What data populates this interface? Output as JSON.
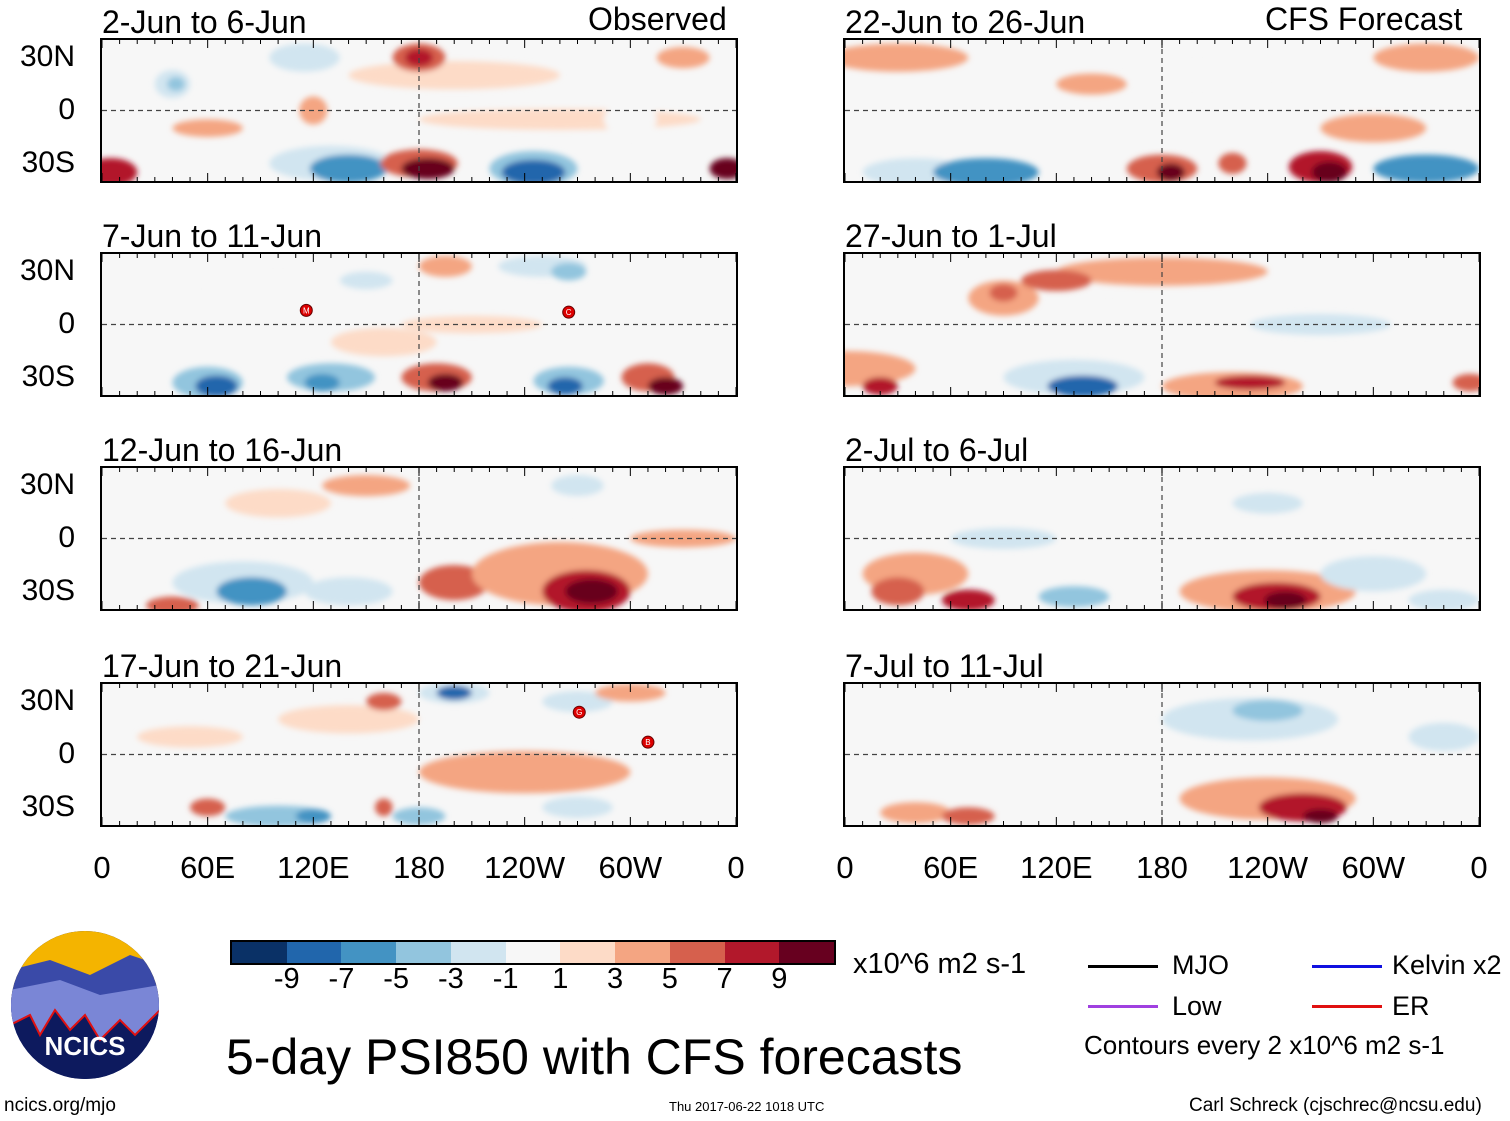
{
  "title": "5-day PSI850 with CFS forecasts",
  "units": "x10^6 m2 s-1",
  "contour_note": "Contours every 2 x10^6 m2 s-1",
  "footer": {
    "left": "ncics.org/mjo",
    "center": "Thu 2017-06-22 1018 UTC",
    "right": "Carl Schreck (cjschrec@ncsu.edu)"
  },
  "logo_text": "NCICS",
  "legend": [
    {
      "label": "MJO",
      "color": "#000000"
    },
    {
      "label": "Kelvin x2",
      "color": "#1010e0"
    },
    {
      "label": "Low",
      "color": "#a040e0"
    },
    {
      "label": "ER",
      "color": "#e01010"
    }
  ],
  "colorbar": {
    "colors": [
      "#0a3166",
      "#2166ac",
      "#4393c3",
      "#92c5de",
      "#d1e5f0",
      "#f7f7f7",
      "#fddbc7",
      "#f4a582",
      "#d6604d",
      "#b2182b",
      "#67001f"
    ],
    "labels": [
      "-9",
      "-7",
      "-5",
      "-3",
      "-1",
      "1",
      "3",
      "5",
      "7",
      "9"
    ]
  },
  "chart_data": {
    "type": "heatmap",
    "lat_ticks": [
      "30N",
      "0",
      "30S"
    ],
    "lon_ticks": [
      "0",
      "60E",
      "120E",
      "180",
      "120W",
      "60W",
      "0"
    ],
    "lat_range": [
      -40,
      40
    ],
    "lon_range": [
      0,
      360
    ],
    "column_titles": [
      "Observed",
      "CFS Forecast"
    ],
    "panels": [
      {
        "title": "2-Jun to 6-Jun",
        "blobs": [
          [
            200,
            20,
            60,
            8,
            1
          ],
          [
            260,
            -5,
            80,
            6,
            1
          ],
          [
            60,
            -10,
            20,
            5,
            3
          ],
          [
            180,
            30,
            15,
            8,
            5
          ],
          [
            180,
            30,
            8,
            5,
            7
          ],
          [
            130,
            -30,
            35,
            10,
            -3
          ],
          [
            140,
            -33,
            22,
            8,
            -7
          ],
          [
            180,
            -30,
            22,
            8,
            5
          ],
          [
            185,
            -33,
            15,
            6,
            9
          ],
          [
            245,
            -33,
            25,
            10,
            -5
          ],
          [
            245,
            -35,
            18,
            7,
            -9
          ],
          [
            5,
            -35,
            15,
            8,
            7
          ],
          [
            355,
            -33,
            10,
            6,
            9
          ],
          [
            40,
            15,
            10,
            8,
            -3
          ],
          [
            42,
            15,
            5,
            4,
            -5
          ],
          [
            115,
            30,
            20,
            8,
            -3
          ],
          [
            300,
            -5,
            15,
            10,
            -1
          ],
          [
            330,
            30,
            15,
            6,
            3
          ],
          [
            120,
            0,
            8,
            8,
            3
          ]
        ],
        "storms": []
      },
      {
        "title": "7-Jun to 11-Jun",
        "blobs": [
          [
            100,
            20,
            40,
            8,
            -1
          ],
          [
            150,
            25,
            15,
            5,
            -3
          ],
          [
            195,
            33,
            15,
            6,
            3
          ],
          [
            250,
            33,
            25,
            6,
            -3
          ],
          [
            265,
            30,
            10,
            5,
            -5
          ],
          [
            160,
            -10,
            30,
            8,
            1
          ],
          [
            40,
            -10,
            30,
            6,
            -1
          ],
          [
            60,
            -33,
            20,
            9,
            -5
          ],
          [
            65,
            -35,
            12,
            6,
            -9
          ],
          [
            130,
            -30,
            25,
            8,
            -5
          ],
          [
            125,
            -33,
            10,
            5,
            -7
          ],
          [
            190,
            -30,
            20,
            8,
            5
          ],
          [
            195,
            -33,
            10,
            5,
            9
          ],
          [
            265,
            -32,
            20,
            8,
            -5
          ],
          [
            263,
            -35,
            10,
            5,
            -9
          ],
          [
            310,
            -30,
            15,
            8,
            5
          ],
          [
            320,
            -35,
            10,
            5,
            9
          ],
          [
            210,
            0,
            40,
            5,
            1
          ]
        ],
        "storms": [
          [
            116,
            8,
            "M"
          ],
          [
            265,
            7,
            "C"
          ]
        ]
      },
      {
        "title": "12-Jun to 16-Jun",
        "blobs": [
          [
            100,
            20,
            30,
            8,
            1
          ],
          [
            150,
            30,
            25,
            6,
            3
          ],
          [
            260,
            25,
            40,
            10,
            -1
          ],
          [
            270,
            30,
            15,
            6,
            -3
          ],
          [
            80,
            -25,
            40,
            12,
            -3
          ],
          [
            85,
            -30,
            20,
            8,
            -7
          ],
          [
            140,
            -30,
            25,
            8,
            -3
          ],
          [
            200,
            -25,
            20,
            10,
            5
          ],
          [
            260,
            -20,
            50,
            18,
            3
          ],
          [
            275,
            -30,
            25,
            12,
            7
          ],
          [
            278,
            -30,
            15,
            7,
            9
          ],
          [
            40,
            -38,
            15,
            5,
            5
          ],
          [
            330,
            0,
            30,
            5,
            3
          ]
        ],
        "storms": []
      },
      {
        "title": "17-Jun to 21-Jun",
        "blobs": [
          [
            140,
            20,
            40,
            8,
            1
          ],
          [
            160,
            30,
            10,
            5,
            5
          ],
          [
            200,
            35,
            20,
            6,
            -3
          ],
          [
            200,
            35,
            10,
            4,
            -9
          ],
          [
            270,
            30,
            20,
            6,
            -3
          ],
          [
            300,
            35,
            20,
            5,
            3
          ],
          [
            240,
            -10,
            60,
            12,
            3
          ],
          [
            100,
            -35,
            30,
            6,
            -5
          ],
          [
            120,
            -35,
            10,
            4,
            -7
          ],
          [
            180,
            -35,
            15,
            5,
            -5
          ],
          [
            160,
            -30,
            5,
            5,
            5
          ],
          [
            60,
            -30,
            10,
            5,
            5
          ],
          [
            270,
            -30,
            20,
            6,
            -3
          ],
          [
            50,
            10,
            30,
            6,
            1
          ]
        ],
        "storms": [
          [
            271,
            24,
            "G"
          ],
          [
            310,
            7,
            "B"
          ]
        ]
      },
      {
        "title": "22-Jun to 26-Jun",
        "blobs": [
          [
            30,
            30,
            40,
            8,
            3
          ],
          [
            330,
            30,
            30,
            8,
            3
          ],
          [
            200,
            20,
            40,
            6,
            -1
          ],
          [
            110,
            -10,
            30,
            8,
            -1
          ],
          [
            300,
            -10,
            30,
            8,
            3
          ],
          [
            40,
            -35,
            30,
            8,
            -3
          ],
          [
            80,
            -35,
            30,
            8,
            -7
          ],
          [
            180,
            -33,
            20,
            8,
            5
          ],
          [
            185,
            -35,
            8,
            5,
            9
          ],
          [
            220,
            -30,
            8,
            6,
            5
          ],
          [
            270,
            -32,
            18,
            9,
            7
          ],
          [
            275,
            -35,
            10,
            6,
            9
          ],
          [
            330,
            -33,
            30,
            8,
            -7
          ],
          [
            140,
            15,
            20,
            6,
            3
          ]
        ],
        "storms": []
      },
      {
        "title": "27-Jun to 1-Jul",
        "blobs": [
          [
            180,
            30,
            60,
            8,
            3
          ],
          [
            90,
            15,
            20,
            10,
            3
          ],
          [
            90,
            18,
            8,
            5,
            5
          ],
          [
            120,
            25,
            20,
            6,
            5
          ],
          [
            270,
            0,
            40,
            6,
            -3
          ],
          [
            0,
            -25,
            40,
            10,
            3
          ],
          [
            20,
            -35,
            10,
            5,
            7
          ],
          [
            130,
            -30,
            40,
            10,
            -3
          ],
          [
            135,
            -35,
            20,
            6,
            -9
          ],
          [
            220,
            -35,
            40,
            8,
            3
          ],
          [
            230,
            -33,
            20,
            4,
            7
          ],
          [
            355,
            -33,
            10,
            5,
            5
          ],
          [
            150,
            5,
            30,
            6,
            -1
          ]
        ],
        "storms": []
      },
      {
        "title": "2-Jul to 6-Jul",
        "blobs": [
          [
            230,
            20,
            60,
            12,
            -1
          ],
          [
            240,
            20,
            20,
            6,
            -3
          ],
          [
            40,
            -20,
            30,
            12,
            3
          ],
          [
            30,
            -30,
            15,
            8,
            5
          ],
          [
            70,
            -35,
            15,
            6,
            7
          ],
          [
            240,
            -30,
            50,
            12,
            3
          ],
          [
            245,
            -33,
            25,
            8,
            7
          ],
          [
            250,
            -35,
            12,
            5,
            9
          ],
          [
            130,
            -33,
            20,
            6,
            -5
          ],
          [
            300,
            -20,
            30,
            10,
            -3
          ],
          [
            340,
            -35,
            20,
            6,
            -3
          ],
          [
            90,
            0,
            30,
            6,
            -3
          ]
        ],
        "storms": []
      },
      {
        "title": "7-Jul to 11-Jul",
        "blobs": [
          [
            230,
            20,
            50,
            12,
            -3
          ],
          [
            240,
            25,
            20,
            6,
            -5
          ],
          [
            130,
            0,
            30,
            6,
            -1
          ],
          [
            40,
            -33,
            20,
            6,
            3
          ],
          [
            70,
            -35,
            15,
            5,
            5
          ],
          [
            240,
            -25,
            50,
            12,
            3
          ],
          [
            260,
            -30,
            25,
            8,
            7
          ],
          [
            270,
            -35,
            10,
            4,
            9
          ],
          [
            160,
            -25,
            20,
            10,
            -1
          ],
          [
            340,
            10,
            20,
            8,
            -3
          ]
        ],
        "storms": []
      }
    ]
  }
}
